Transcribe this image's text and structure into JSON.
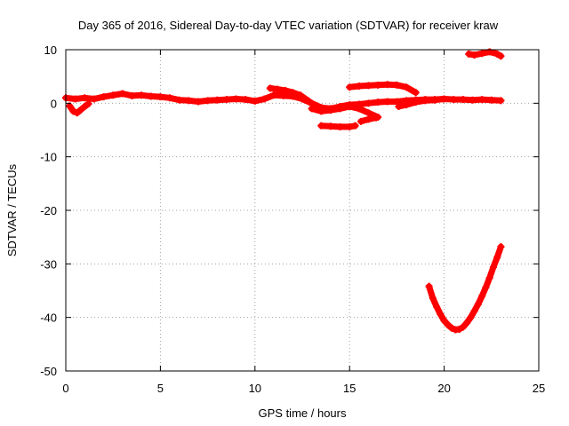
{
  "chart_data": {
    "type": "scatter",
    "title": "Day 365 of 2016, Sidereal Day-to-day VTEC variation (SDTVAR) for receiver kraw",
    "xlabel": "GPS time / hours",
    "ylabel": "SDTVAR / TECUs",
    "xlim": [
      0,
      25
    ],
    "ylim": [
      -50,
      10
    ],
    "xticks": [
      0,
      5,
      10,
      15,
      20,
      25
    ],
    "yticks": [
      -50,
      -40,
      -30,
      -20,
      -10,
      0,
      10
    ],
    "grid": true,
    "legend": "none",
    "color": "#ff0000",
    "series": [
      {
        "name": "main band",
        "x": [
          0.0,
          0.5,
          1.0,
          1.5,
          2.0,
          2.5,
          3.0,
          3.5,
          4.0,
          4.5,
          5.0,
          5.5,
          6.0,
          6.5,
          7.0,
          7.5,
          8.0,
          8.5,
          9.0,
          9.5,
          10.0,
          10.5,
          11.0,
          11.5,
          12.0,
          12.5,
          13.0,
          13.5,
          14.0,
          14.5,
          15.0,
          15.5,
          16.0,
          16.5,
          17.0,
          17.5,
          18.0,
          18.5,
          19.0,
          19.5,
          20.0,
          20.5,
          21.0,
          21.5,
          22.0,
          22.5,
          23.0
        ],
        "y": [
          1.0,
          0.8,
          1.0,
          0.8,
          1.2,
          1.5,
          1.8,
          1.4,
          1.5,
          1.3,
          1.2,
          1.0,
          0.6,
          0.5,
          0.3,
          0.5,
          0.6,
          0.7,
          0.8,
          0.7,
          0.4,
          0.8,
          1.5,
          1.4,
          1.3,
          0.8,
          0.0,
          -0.8,
          -1.0,
          -0.6,
          -0.3,
          -0.2,
          0.0,
          0.2,
          0.3,
          0.3,
          0.5,
          0.6,
          0.7,
          0.7,
          0.8,
          0.7,
          0.7,
          0.6,
          0.7,
          0.6,
          0.5
        ]
      },
      {
        "name": "upper band (hours 11-13.5)",
        "x": [
          10.8,
          11.2,
          11.6,
          12.0,
          12.4,
          12.8,
          13.2,
          13.5
        ],
        "y": [
          2.8,
          2.6,
          2.4,
          2.0,
          1.5,
          0.5,
          -0.6,
          -1.2
        ]
      },
      {
        "name": "lower band (hours 13-16.5)",
        "x": [
          13.0,
          13.5,
          14.0,
          14.5,
          15.0,
          15.5,
          16.0,
          16.5
        ],
        "y": [
          -1.0,
          -1.5,
          -1.3,
          -1.0,
          -0.6,
          -1.0,
          -1.8,
          -2.6
        ]
      },
      {
        "name": "start dip",
        "x": [
          0.2,
          0.4,
          0.6,
          0.8,
          1.0,
          1.2
        ],
        "y": [
          -0.5,
          -1.5,
          -1.8,
          -1.2,
          -0.6,
          -0.1
        ]
      },
      {
        "name": "arc near 15-18.5 h",
        "x": [
          15.0,
          15.5,
          16.0,
          16.5,
          17.0,
          17.5,
          18.0,
          18.5
        ],
        "y": [
          3.0,
          3.2,
          3.3,
          3.4,
          3.5,
          3.4,
          3.0,
          2.0
        ]
      },
      {
        "name": "segment near -4 TECU",
        "x": [
          13.5,
          14.0,
          14.5,
          15.0,
          15.3
        ],
        "y": [
          -4.2,
          -4.3,
          -4.4,
          -4.4,
          -4.2
        ]
      },
      {
        "name": "short segment 15.5-16.5 h",
        "x": [
          15.6,
          16.0,
          16.4
        ],
        "y": [
          -3.4,
          -3.0,
          -2.7
        ]
      },
      {
        "name": "segment 18-20 h",
        "x": [
          17.6,
          18.0,
          18.5,
          19.0,
          19.5,
          20.0
        ],
        "y": [
          -0.6,
          -0.3,
          0.2,
          0.5,
          0.6,
          0.8
        ]
      },
      {
        "name": "top right segment",
        "x": [
          21.3,
          21.6,
          22.0,
          22.4,
          22.8,
          23.0
        ],
        "y": [
          9.2,
          9.0,
          9.3,
          9.6,
          9.2,
          8.8
        ]
      },
      {
        "name": "deep arc",
        "x": [
          19.2,
          19.4,
          19.6,
          19.8,
          20.0,
          20.2,
          20.4,
          20.6,
          20.8,
          21.0,
          21.2,
          21.4,
          21.6,
          21.8,
          22.0,
          22.2,
          22.4,
          22.6,
          22.8,
          23.0
        ],
        "y": [
          -34.2,
          -36.4,
          -38.0,
          -39.4,
          -40.6,
          -41.4,
          -42.0,
          -42.3,
          -42.2,
          -41.8,
          -41.0,
          -40.0,
          -38.8,
          -37.5,
          -36.0,
          -34.4,
          -32.6,
          -30.6,
          -28.8,
          -26.8
        ]
      }
    ]
  }
}
